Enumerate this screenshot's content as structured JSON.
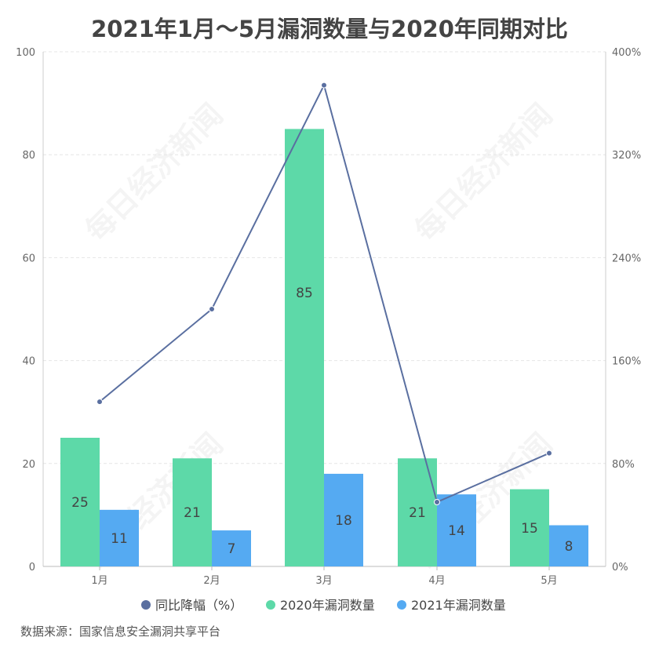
{
  "watermark_text": "每日经济新闻",
  "chart_data": {
    "type": "bar",
    "title": "2021年1月～5月漏洞数量与2020年同期对比",
    "categories": [
      "1月",
      "2月",
      "3月",
      "4月",
      "5月"
    ],
    "series": [
      {
        "name": "2020年漏洞数量",
        "type": "bar",
        "axis": "left",
        "color": "#5dd9a8",
        "values": [
          25,
          21,
          85,
          21,
          15
        ]
      },
      {
        "name": "2021年漏洞数量",
        "type": "bar",
        "axis": "left",
        "color": "#55aaf2",
        "values": [
          11,
          7,
          18,
          14,
          8
        ]
      },
      {
        "name": "同比降幅（%）",
        "type": "line",
        "axis": "right",
        "color": "#5a6fa0",
        "values": [
          128,
          200,
          374,
          50,
          88
        ]
      }
    ],
    "ylim_left": [
      0,
      100
    ],
    "yticks_left": [
      "0",
      "20",
      "40",
      "60",
      "80",
      "100"
    ],
    "ylim_right": [
      0,
      400
    ],
    "yticks_right": [
      "0%",
      "80%",
      "160%",
      "240%",
      "320%",
      "400%"
    ],
    "legend_position": "bottom",
    "grid": true
  },
  "source": "数据来源：国家信息安全漏洞共享平台"
}
